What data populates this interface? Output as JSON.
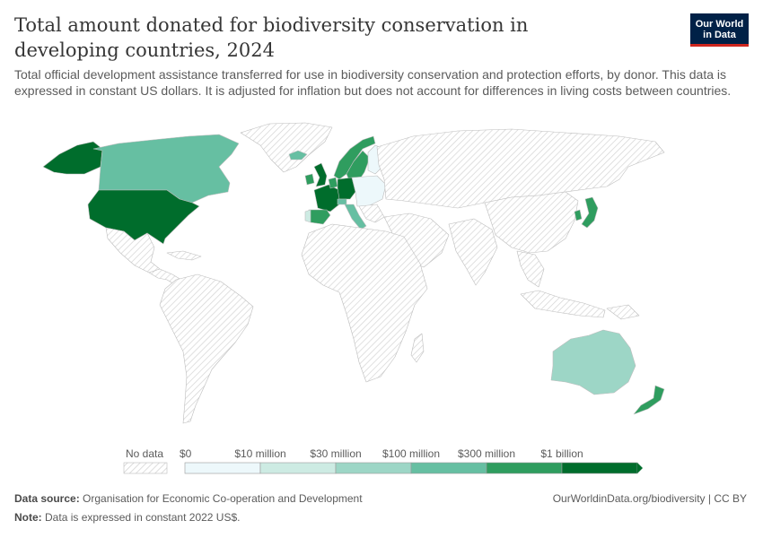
{
  "title": "Total amount donated for biodiversity conservation in developing countries, 2024",
  "subtitle": "Total official development assistance transferred for use in biodiversity conservation and protection efforts, by donor. This data is expressed in constant US dollars. It is adjusted for inflation but does not account for differences in living costs between countries.",
  "logo": {
    "line1": "Our World",
    "line2": "in Data",
    "bg_color": "#002147",
    "accent_color": "#ce261e"
  },
  "legend": {
    "no_data_label": "No data",
    "bins": [
      {
        "label": "$0",
        "color": "#edf8fb"
      },
      {
        "label": "$10 million",
        "color": "#cdebe3"
      },
      {
        "label": "$30 million",
        "color": "#9dd6c6"
      },
      {
        "label": "$100 million",
        "color": "#66bfa2"
      },
      {
        "label": "$300 million",
        "color": "#2f9d5f"
      },
      {
        "label": "$1 billion",
        "color": "#006d2c"
      }
    ]
  },
  "footer": {
    "source_label": "Data source:",
    "source_text": "Organisation for Economic Co-operation and Development",
    "note_label": "Note:",
    "note_text": "Data is expressed in constant 2022 US$.",
    "url": "OurWorldinData.org/biodiversity | CC BY"
  },
  "map_data": {
    "type": "choropleth",
    "year": 2024,
    "donors": [
      {
        "country": "United States",
        "bin": "$1 billion"
      },
      {
        "country": "United Kingdom",
        "bin": "$1 billion"
      },
      {
        "country": "Germany",
        "bin": "$1 billion"
      },
      {
        "country": "France",
        "bin": "$1 billion"
      },
      {
        "country": "Canada",
        "bin": "$100 million"
      },
      {
        "country": "Australia",
        "bin": "$30 million"
      },
      {
        "country": "Japan",
        "bin": "$300 million"
      },
      {
        "country": "Spain",
        "bin": "$300 million"
      },
      {
        "country": "Norway",
        "bin": "$300 million"
      },
      {
        "country": "Sweden",
        "bin": "$300 million"
      },
      {
        "country": "Netherlands",
        "bin": "$300 million"
      },
      {
        "country": "New Zealand",
        "bin": "$300 million"
      },
      {
        "country": "Finland",
        "bin": "$0"
      },
      {
        "country": "Ireland",
        "bin": "$300 million"
      },
      {
        "country": "Italy",
        "bin": "$100 million"
      },
      {
        "country": "Denmark",
        "bin": "$300 million"
      },
      {
        "country": "Belgium",
        "bin": "$100 million"
      },
      {
        "country": "Switzerland",
        "bin": "$100 million"
      },
      {
        "country": "Austria",
        "bin": "$10 million"
      },
      {
        "country": "Poland",
        "bin": "$0"
      },
      {
        "country": "Iceland",
        "bin": "$100 million"
      },
      {
        "country": "South Korea",
        "bin": "$300 million"
      },
      {
        "country": "Portugal",
        "bin": "$10 million"
      },
      {
        "country": "Czechia",
        "bin": "$0"
      }
    ]
  }
}
